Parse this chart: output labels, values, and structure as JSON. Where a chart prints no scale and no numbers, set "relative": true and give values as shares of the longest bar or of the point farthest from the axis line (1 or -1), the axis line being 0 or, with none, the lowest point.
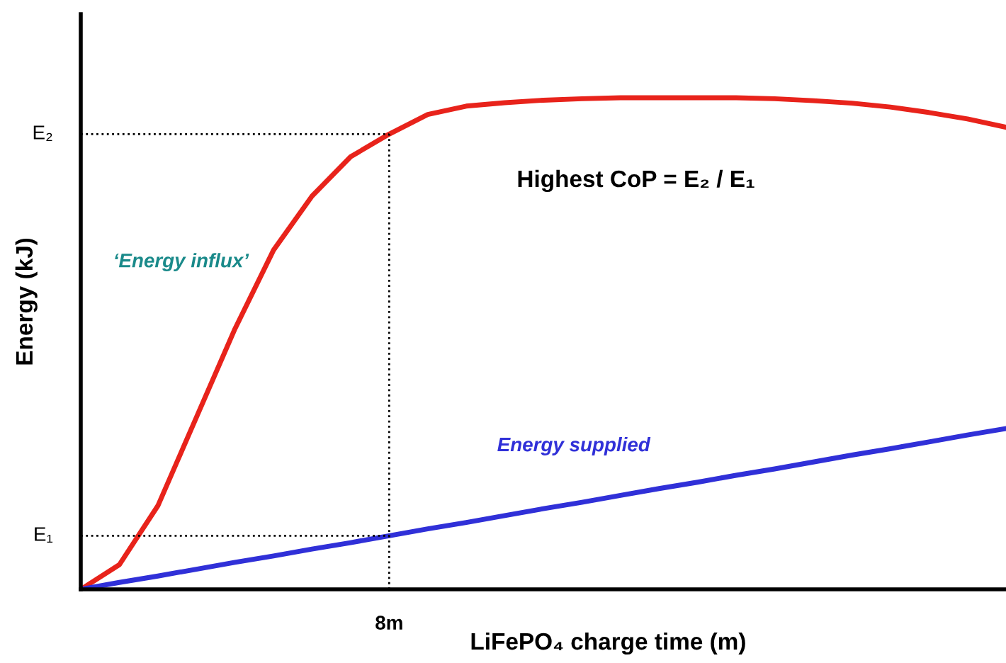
{
  "chart_data": {
    "type": "line",
    "relative": true,
    "xlabel": "LiFePO₄ charge time (m)",
    "ylabel": "Energy (kJ)",
    "categories": [
      null,
      null,
      null,
      null,
      null,
      null,
      null,
      null,
      null,
      null,
      null,
      null,
      null,
      null,
      null,
      null,
      null,
      null,
      null,
      null,
      null,
      null,
      null,
      null,
      null
    ],
    "series": [
      {
        "name": "‘Energy influx’",
        "color": "#e8231b",
        "values": [
          0,
          0.05,
          0.17,
          0.35,
          0.53,
          0.69,
          0.8,
          0.88,
          0.926,
          0.966,
          0.983,
          0.99,
          0.995,
          0.998,
          1,
          1,
          1,
          1,
          0.998,
          0.994,
          0.989,
          0.981,
          0.97,
          0.957,
          0.94
        ]
      },
      {
        "name": "Energy supplied",
        "color": "#3030d8",
        "values": [
          0,
          0.014,
          0.027,
          0.041,
          0.055,
          0.068,
          0.082,
          0.095,
          0.109,
          0.123,
          0.136,
          0.15,
          0.164,
          0.177,
          0.191,
          0.205,
          0.218,
          0.232,
          0.245,
          0.259,
          0.273,
          0.286,
          0.3,
          0.314,
          0.327
        ]
      }
    ],
    "ref_lines": [
      {
        "axis": "y",
        "value": 0.109,
        "label": "E₁",
        "line_style": "dotted"
      },
      {
        "axis": "y",
        "value": 0.926,
        "label": "E₂",
        "line_style": "dotted"
      }
    ],
    "annotations": [
      "Highest CoP = E₂ / E₁",
      "8m"
    ],
    "grid": false,
    "legend": false
  }
}
